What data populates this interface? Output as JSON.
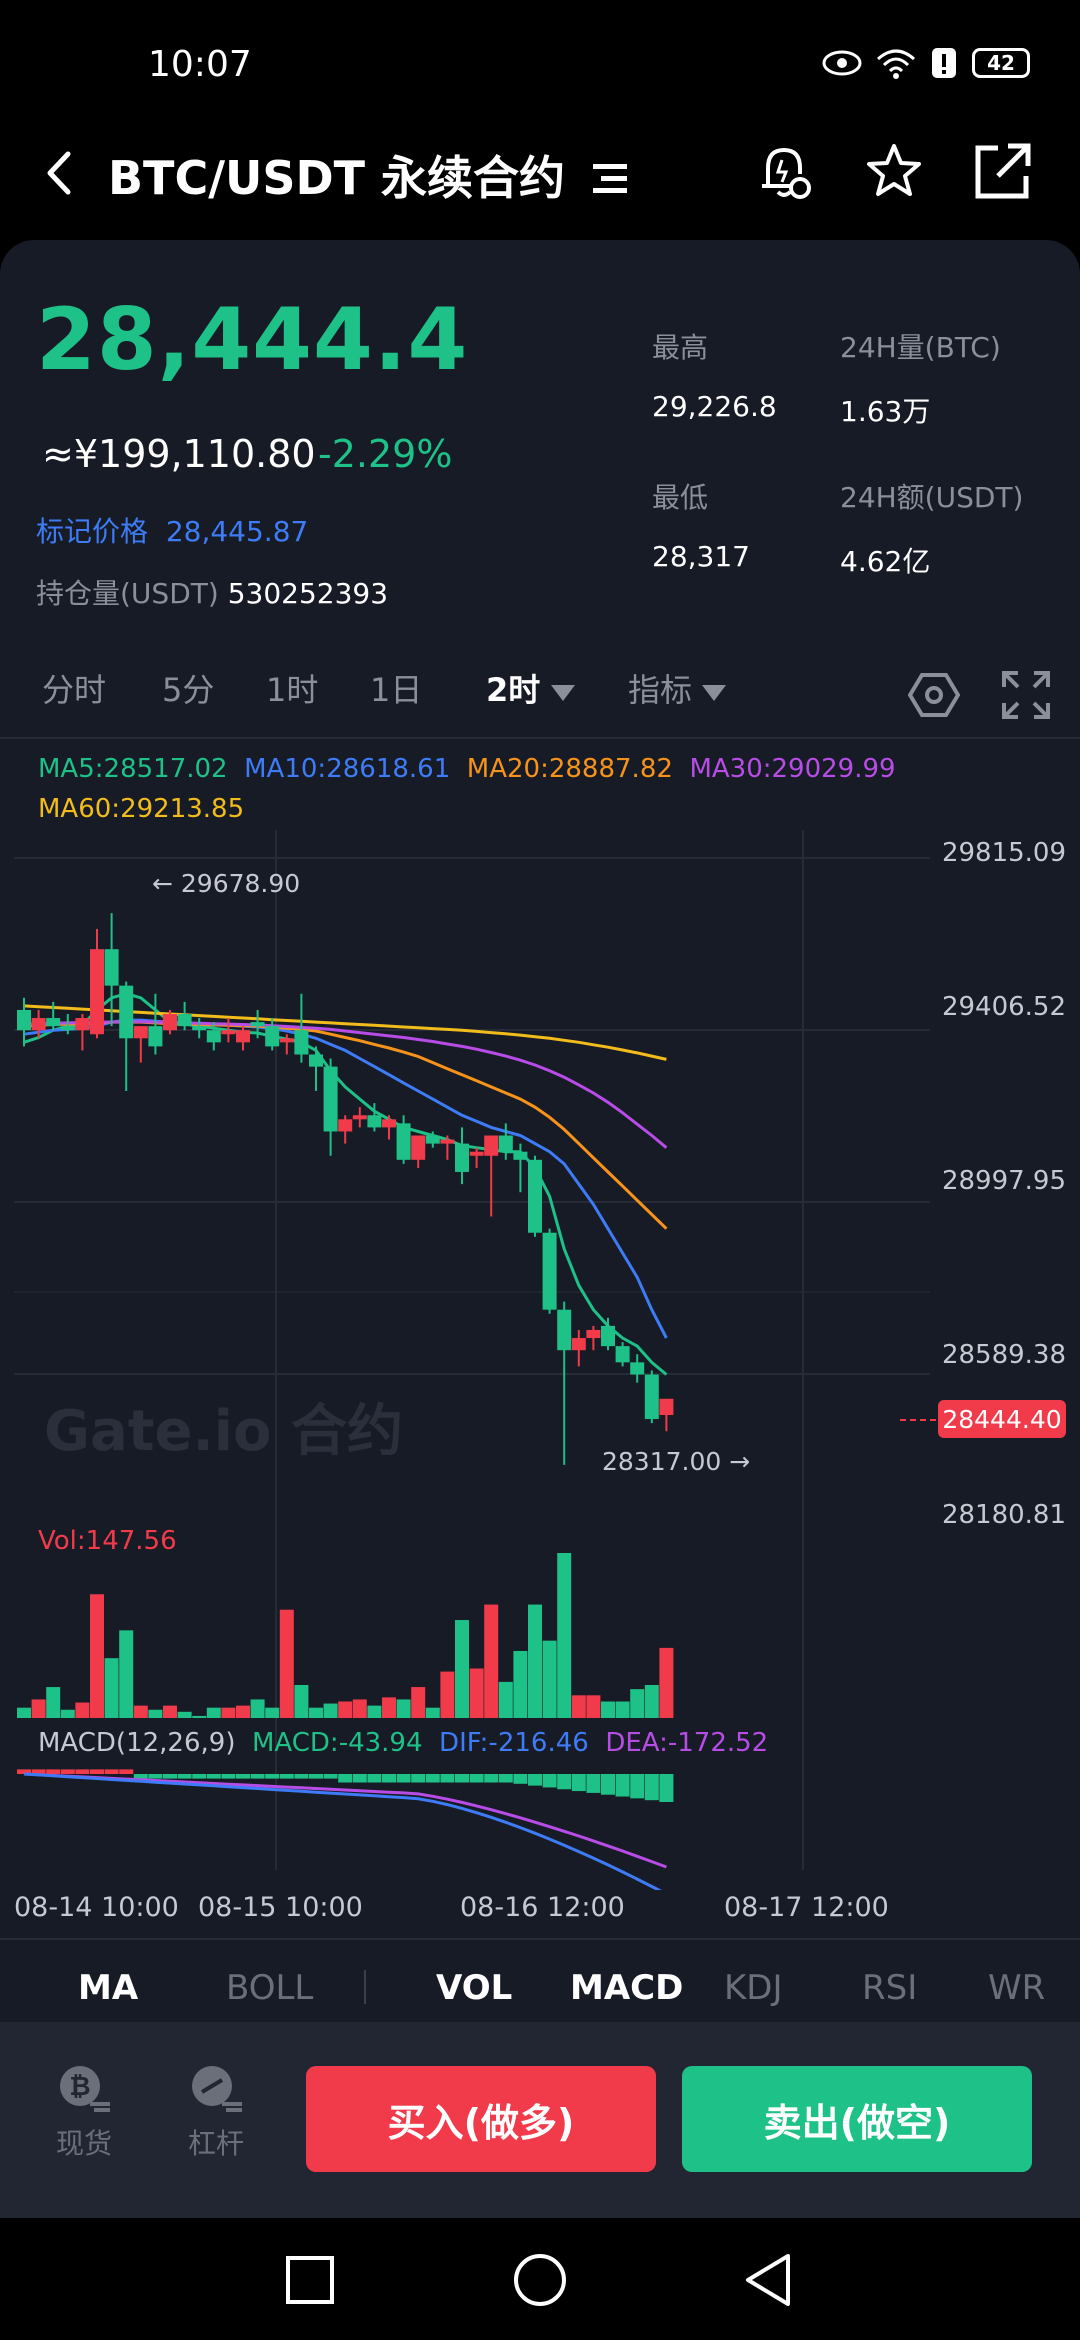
{
  "status": {
    "time": "10:07",
    "battery": "42"
  },
  "header": {
    "title": "BTC/USDT 永续合约"
  },
  "ticker": {
    "last_price": "28,444.4",
    "cny_price": "≈¥199,110.80",
    "change_pct": "-2.29%",
    "mark_label": "标记价格",
    "mark_value": "28,445.87",
    "hold_label": "持仓量(USDT)",
    "hold_value": "530252393",
    "high_label": "最高",
    "high_value": "29,226.8",
    "vol_label": "24H量(BTC)",
    "vol_value": "1.63万",
    "low_label": "最低",
    "low_value": "28,317",
    "amount_label": "24H额(USDT)",
    "amount_value": "4.62亿"
  },
  "tabs": [
    {
      "label": "分时"
    },
    {
      "label": "5分"
    },
    {
      "label": "1时"
    },
    {
      "label": "1日"
    },
    {
      "label": "2时"
    },
    {
      "label": "指标"
    }
  ],
  "ma": {
    "ma5": "MA5:28517.02",
    "ma10": "MA10:28618.61",
    "ma20": "MA20:28887.82",
    "ma30": "MA30:29029.99",
    "ma60": "MA60:29213.85"
  },
  "chart_data": {
    "type": "candlestick",
    "y_axis_labels": [
      "29815.09",
      "29406.52",
      "28997.95",
      "28589.38",
      "28180.81"
    ],
    "ylim": [
      28180.81,
      29815.09
    ],
    "x_tick_labels": [
      "08-14 10:00",
      "08-15 10:00",
      "08-16 12:00",
      "08-17 12:00"
    ],
    "high_annotation": "← 29678.90",
    "low_annotation": "28317.00 →",
    "current_price_tag": "28444.40",
    "watermark": "Gate.io 合约",
    "candles": [
      {
        "o": 29440,
        "h": 29470,
        "l": 29350,
        "c": 29390
      },
      {
        "o": 29390,
        "h": 29440,
        "l": 29370,
        "c": 29420
      },
      {
        "o": 29420,
        "h": 29460,
        "l": 29390,
        "c": 29400
      },
      {
        "o": 29400,
        "h": 29430,
        "l": 29380,
        "c": 29390
      },
      {
        "o": 29390,
        "h": 29430,
        "l": 29340,
        "c": 29420
      },
      {
        "o": 29380,
        "h": 29640,
        "l": 29370,
        "c": 29590
      },
      {
        "o": 29590,
        "h": 29678.9,
        "l": 29400,
        "c": 29500
      },
      {
        "o": 29500,
        "h": 29510,
        "l": 29240,
        "c": 29370
      },
      {
        "o": 29370,
        "h": 29400,
        "l": 29310,
        "c": 29400
      },
      {
        "o": 29400,
        "h": 29480,
        "l": 29330,
        "c": 29350
      },
      {
        "o": 29390,
        "h": 29440,
        "l": 29380,
        "c": 29430
      },
      {
        "o": 29430,
        "h": 29460,
        "l": 29390,
        "c": 29400
      },
      {
        "o": 29400,
        "h": 29420,
        "l": 29370,
        "c": 29390
      },
      {
        "o": 29390,
        "h": 29410,
        "l": 29340,
        "c": 29360
      },
      {
        "o": 29380,
        "h": 29420,
        "l": 29360,
        "c": 29390
      },
      {
        "o": 29360,
        "h": 29400,
        "l": 29340,
        "c": 29390
      },
      {
        "o": 29410,
        "h": 29440,
        "l": 29370,
        "c": 29400
      },
      {
        "o": 29400,
        "h": 29420,
        "l": 29340,
        "c": 29350
      },
      {
        "o": 29360,
        "h": 29380,
        "l": 29330,
        "c": 29370
      },
      {
        "o": 29390,
        "h": 29480,
        "l": 29310,
        "c": 29330
      },
      {
        "o": 29330,
        "h": 29350,
        "l": 29240,
        "c": 29300
      },
      {
        "o": 29300,
        "h": 29320,
        "l": 29080,
        "c": 29140
      },
      {
        "o": 29140,
        "h": 29180,
        "l": 29110,
        "c": 29170
      },
      {
        "o": 29170,
        "h": 29200,
        "l": 29150,
        "c": 29180
      },
      {
        "o": 29180,
        "h": 29210,
        "l": 29140,
        "c": 29150
      },
      {
        "o": 29150,
        "h": 29180,
        "l": 29120,
        "c": 29170
      },
      {
        "o": 29160,
        "h": 29180,
        "l": 29060,
        "c": 29070
      },
      {
        "o": 29070,
        "h": 29120,
        "l": 29050,
        "c": 29130
      },
      {
        "o": 29130,
        "h": 29140,
        "l": 29100,
        "c": 29110
      },
      {
        "o": 29110,
        "h": 29130,
        "l": 29070,
        "c": 29120
      },
      {
        "o": 29110,
        "h": 29150,
        "l": 29010,
        "c": 29040
      },
      {
        "o": 29080,
        "h": 29100,
        "l": 29050,
        "c": 29090
      },
      {
        "o": 29080,
        "h": 29130,
        "l": 28930,
        "c": 29130
      },
      {
        "o": 29130,
        "h": 29160,
        "l": 29070,
        "c": 29090
      },
      {
        "o": 29090,
        "h": 29110,
        "l": 28990,
        "c": 29070
      },
      {
        "o": 29070,
        "h": 29080,
        "l": 28880,
        "c": 28890
      },
      {
        "o": 28890,
        "h": 28900,
        "l": 28690,
        "c": 28700
      },
      {
        "o": 28700,
        "h": 28720,
        "l": 28317,
        "c": 28600
      },
      {
        "o": 28600,
        "h": 28650,
        "l": 28560,
        "c": 28630
      },
      {
        "o": 28630,
        "h": 28660,
        "l": 28600,
        "c": 28650
      },
      {
        "o": 28660,
        "h": 28680,
        "l": 28600,
        "c": 28610
      },
      {
        "o": 28610,
        "h": 28620,
        "l": 28560,
        "c": 28570
      },
      {
        "o": 28570,
        "h": 28590,
        "l": 28520,
        "c": 28540
      },
      {
        "o": 28540,
        "h": 28550,
        "l": 28420,
        "c": 28430
      },
      {
        "o": 28440,
        "h": 28480,
        "l": 28400,
        "c": 28480
      }
    ],
    "ma_lines": [
      {
        "name": "MA5",
        "color": "#1ec187",
        "values": [
          29360,
          29372,
          29390,
          29400,
          29402,
          29440,
          29470,
          29480,
          29470,
          29440,
          29410,
          29405,
          29400,
          29395,
          29390,
          29385,
          29383,
          29375,
          29368,
          29360,
          29340,
          29290,
          29250,
          29220,
          29190,
          29170,
          29150,
          29140,
          29130,
          29120,
          29105,
          29100,
          29095,
          29090,
          29090,
          29050,
          28980,
          28850,
          28760,
          28700,
          28660,
          28630,
          28610,
          28570,
          28540
        ]
      },
      {
        "name": "MA10",
        "color": "#3d7cf6",
        "values": [
          29380,
          29385,
          29390,
          29392,
          29395,
          29400,
          29410,
          29415,
          29415,
          29412,
          29410,
          29408,
          29406,
          29404,
          29402,
          29400,
          29398,
          29394,
          29388,
          29380,
          29370,
          29355,
          29340,
          29320,
          29300,
          29280,
          29260,
          29240,
          29220,
          29200,
          29180,
          29165,
          29150,
          29140,
          29130,
          29110,
          29090,
          29060,
          29010,
          28960,
          28900,
          28840,
          28780,
          28700,
          28630
        ]
      },
      {
        "name": "MA20",
        "color": "#f7931a",
        "values": [
          29400,
          29402,
          29404,
          29405,
          29406,
          29408,
          29410,
          29410,
          29410,
          29408,
          29406,
          29405,
          29404,
          29403,
          29402,
          29401,
          29400,
          29398,
          29395,
          29392,
          29388,
          29380,
          29372,
          29364,
          29355,
          29346,
          29336,
          29325,
          29310,
          29295,
          29280,
          29265,
          29250,
          29235,
          29220,
          29200,
          29175,
          29145,
          29110,
          29075,
          29040,
          29005,
          28970,
          28935,
          28900
        ]
      },
      {
        "name": "MA30",
        "color": "#b84ce6",
        "values": [
          29405,
          29406,
          29407,
          29408,
          29409,
          29410,
          29410,
          29411,
          29411,
          29410,
          29409,
          29408,
          29407,
          29406,
          29405,
          29404,
          29403,
          29401,
          29399,
          29397,
          29395,
          29392,
          29388,
          29384,
          29380,
          29376,
          29372,
          29367,
          29362,
          29356,
          29350,
          29343,
          29335,
          29326,
          29316,
          29304,
          29290,
          29274,
          29255,
          29235,
          29212,
          29186,
          29158,
          29130,
          29100
        ]
      },
      {
        "name": "MA60",
        "color": "#f2bc1b",
        "values": [
          29450,
          29448,
          29446,
          29444,
          29442,
          29440,
          29438,
          29436,
          29434,
          29432,
          29430,
          29428,
          29426,
          29424,
          29422,
          29420,
          29418,
          29416,
          29414,
          29412,
          29410,
          29408,
          29406,
          29404,
          29402,
          29400,
          29398,
          29396,
          29394,
          29392,
          29390,
          29387,
          29384,
          29381,
          29378,
          29374,
          29370,
          29365,
          29360,
          29354,
          29348,
          29341,
          29334,
          29326,
          29318
        ]
      }
    ],
    "volume": {
      "label": "Vol:147.56",
      "values": [
        10,
        18,
        30,
        8,
        15,
        120,
        58,
        85,
        12,
        8,
        12,
        6,
        2,
        10,
        10,
        12,
        18,
        10,
        105,
        32,
        10,
        14,
        16,
        18,
        12,
        20,
        18,
        30,
        10,
        45,
        95,
        48,
        110,
        35,
        65,
        110,
        75,
        160,
        22,
        22,
        16,
        16,
        28,
        32,
        68
      ]
    },
    "macd": {
      "label": "MACD(12,26,9)",
      "macd_value": "MACD:-43.94",
      "dif_value": "DIF:-216.46",
      "dea_value": "DEA:-172.52"
    }
  },
  "indicators": [
    {
      "label": "MA",
      "on": true
    },
    {
      "label": "BOLL",
      "on": false
    },
    {
      "label": "VOL",
      "on": true
    },
    {
      "label": "MACD",
      "on": true
    },
    {
      "label": "KDJ",
      "on": false
    },
    {
      "label": "RSI",
      "on": false
    },
    {
      "label": "WR",
      "on": false
    }
  ],
  "bottom": {
    "spot_label": "现货",
    "margin_label": "杠杆",
    "buy_label": "买入(做多)",
    "sell_label": "卖出(做空)"
  },
  "colors": {
    "up": "#1ec187",
    "down": "#f23b4a"
  }
}
